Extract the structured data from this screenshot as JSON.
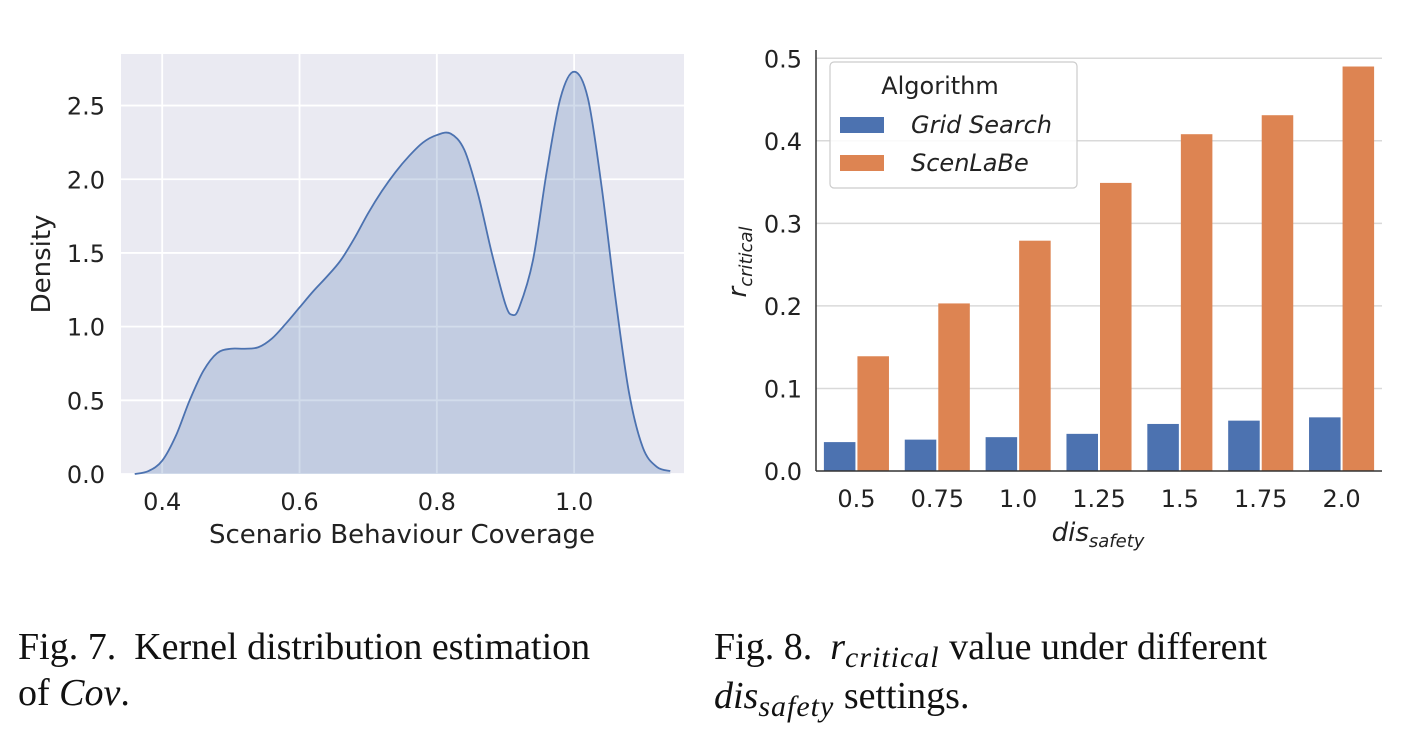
{
  "chart_data": [
    {
      "type": "area",
      "xlabel": "Scenario Behaviour Coverage",
      "ylabel": "Density",
      "xlim": [
        0.34,
        1.16
      ],
      "ylim": [
        0,
        2.85
      ],
      "xticks": [
        "0.4",
        "0.6",
        "0.8",
        "1.0"
      ],
      "yticks": [
        "0.0",
        "0.5",
        "1.0",
        "1.5",
        "2.0",
        "2.5"
      ],
      "grid": true,
      "color": "#4c72b0",
      "x": [
        0.36,
        0.38,
        0.4,
        0.42,
        0.44,
        0.46,
        0.48,
        0.5,
        0.52,
        0.54,
        0.56,
        0.58,
        0.6,
        0.62,
        0.64,
        0.66,
        0.68,
        0.7,
        0.72,
        0.74,
        0.76,
        0.78,
        0.8,
        0.82,
        0.84,
        0.86,
        0.88,
        0.9,
        0.91,
        0.92,
        0.94,
        0.96,
        0.98,
        1.0,
        1.02,
        1.04,
        1.06,
        1.08,
        1.1,
        1.12,
        1.14
      ],
      "y": [
        0.0,
        0.02,
        0.09,
        0.26,
        0.5,
        0.7,
        0.82,
        0.85,
        0.85,
        0.86,
        0.92,
        1.02,
        1.13,
        1.24,
        1.34,
        1.45,
        1.6,
        1.77,
        1.92,
        2.05,
        2.16,
        2.25,
        2.3,
        2.31,
        2.2,
        1.9,
        1.5,
        1.15,
        1.08,
        1.13,
        1.45,
        2.05,
        2.55,
        2.73,
        2.55,
        1.95,
        1.2,
        0.55,
        0.18,
        0.05,
        0.02
      ]
    },
    {
      "type": "bar",
      "categories": [
        "0.5",
        "0.75",
        "1.0",
        "1.25",
        "1.5",
        "1.75",
        "2.0"
      ],
      "xlabel": "dis",
      "xlabel_sub": "safety",
      "ylabel": "r",
      "ylabel_sub": "critical",
      "ylim": [
        0,
        0.51
      ],
      "yticks": [
        "0.0",
        "0.1",
        "0.2",
        "0.3",
        "0.4",
        "0.5"
      ],
      "grid": true,
      "legend_title": "Algorithm",
      "legend_position": "top-left",
      "series": [
        {
          "name": "Grid Search",
          "color": "#4c72b0",
          "values": [
            0.035,
            0.038,
            0.041,
            0.045,
            0.057,
            0.061,
            0.065
          ]
        },
        {
          "name": "ScenLaBe",
          "color": "#dd8452",
          "values": [
            0.139,
            0.203,
            0.279,
            0.349,
            0.408,
            0.431,
            0.49
          ]
        }
      ]
    }
  ],
  "captions": {
    "fig7_label": "Fig. 7.",
    "fig7_text": "Kernel distribution estimation",
    "fig7_line2": "of",
    "fig7_math": "Cov",
    "fig7_end": ".",
    "fig8_label": "Fig. 8.",
    "fig8_math": "r",
    "fig8_math_sub": "critical",
    "fig8_text": "value under different",
    "fig8_line2_math": "dis",
    "fig8_line2_sub": "safety",
    "fig8_line2_text": "settings."
  }
}
